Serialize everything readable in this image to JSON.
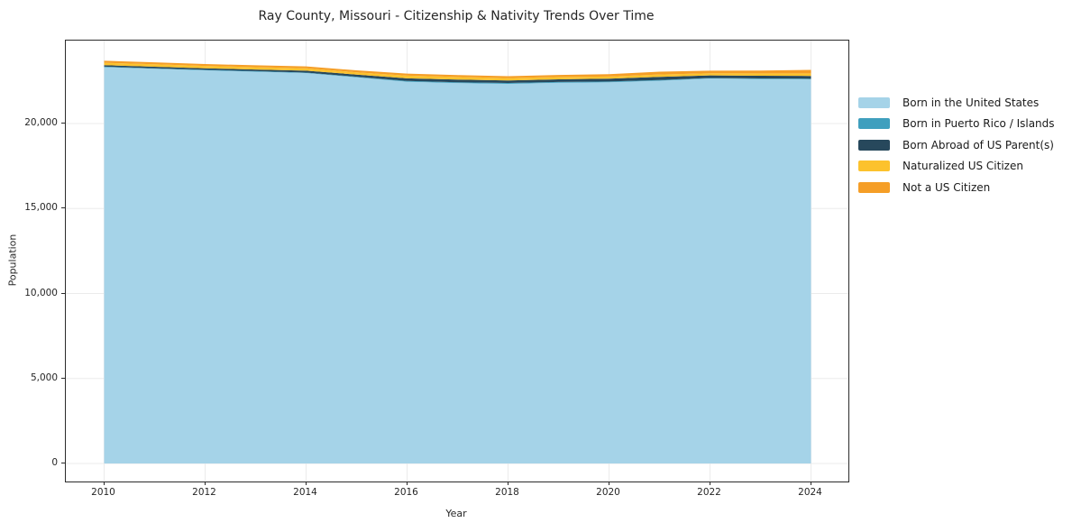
{
  "chart_data": {
    "type": "area",
    "stacked": true,
    "title": "Ray County, Missouri - Citizenship & Nativity Trends Over Time",
    "xlabel": "Year",
    "ylabel": "Population",
    "x": [
      2010,
      2011,
      2012,
      2013,
      2014,
      2015,
      2016,
      2017,
      2018,
      2019,
      2020,
      2021,
      2022,
      2023,
      2024
    ],
    "xticks": [
      2010,
      2012,
      2014,
      2016,
      2018,
      2020,
      2022,
      2024
    ],
    "xtick_labels": [
      "2010",
      "2012",
      "2014",
      "2016",
      "2018",
      "2020",
      "2022",
      "2024"
    ],
    "yticks": [
      0,
      5000,
      10000,
      15000,
      20000
    ],
    "ytick_labels": [
      "0",
      "5,000",
      "10,000",
      "15,000",
      "20,000"
    ],
    "xlim": [
      2009.24,
      2024.74
    ],
    "ylim": [
      0,
      24880
    ],
    "grid": true,
    "grid_color": "#ebebeb",
    "frame_color": "#2b2b2b",
    "text_color": "#262626",
    "legend": {
      "position": "right-outside"
    },
    "series": [
      {
        "name": "Born in the United States",
        "color": "#a5d3e8",
        "values": [
          23315,
          23220,
          23130,
          23050,
          22970,
          22720,
          22460,
          22380,
          22335,
          22400,
          22430,
          22520,
          22650,
          22620,
          22600
        ]
      },
      {
        "name": "Born in Puerto Rico / Islands",
        "color": "#3f9fbe",
        "values": [
          30,
          30,
          30,
          30,
          30,
          35,
          50,
          50,
          50,
          45,
          40,
          40,
          30,
          35,
          40
        ]
      },
      {
        "name": "Born Abroad of US Parent(s)",
        "color": "#27485c",
        "values": [
          85,
          90,
          90,
          100,
          110,
          125,
          150,
          155,
          150,
          155,
          165,
          185,
          155,
          155,
          160
        ]
      },
      {
        "name": "Naturalized US Citizen",
        "color": "#fcc22d",
        "values": [
          145,
          145,
          140,
          135,
          135,
          135,
          155,
          150,
          140,
          140,
          130,
          140,
          125,
          140,
          150
        ]
      },
      {
        "name": "Not a US Citizen",
        "color": "#f59e27",
        "values": [
          115,
          115,
          110,
          110,
          120,
          115,
          125,
          115,
          110,
          120,
          135,
          165,
          150,
          165,
          205
        ]
      }
    ]
  }
}
